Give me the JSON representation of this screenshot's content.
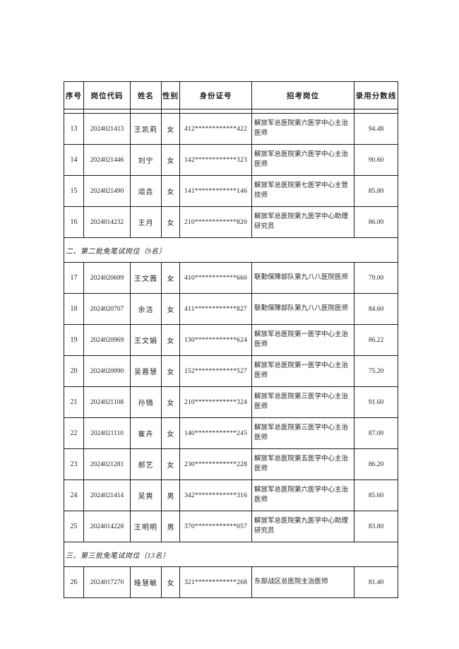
{
  "colors": {
    "page_background": "#ffffff",
    "border": "#1a1a1a",
    "text": "#1d1d1d"
  },
  "table": {
    "headers": [
      "序号",
      "岗位代码",
      "姓名",
      "性别",
      "身份证号",
      "招考岗位",
      "录用分数线"
    ],
    "rows": [
      {
        "type": "spacer"
      },
      {
        "type": "data",
        "seq": "13",
        "code": "2024021413",
        "name": "王凯莉",
        "gender": "女",
        "id_number": "412************422",
        "position": "解放军总医院第六医学中心主治医师",
        "score": "94.48"
      },
      {
        "type": "data",
        "seq": "14",
        "code": "2024021446",
        "name": "刘宁",
        "gender": "女",
        "id_number": "142************323",
        "position": "解放军总医院第六医学中心主治医师",
        "score": "90.60"
      },
      {
        "type": "data",
        "seq": "15",
        "code": "2024021490",
        "name": "俎垚",
        "gender": "女",
        "id_number": "141************146",
        "position": "解放军总医院第七医学中心主管技师",
        "score": "85.80"
      },
      {
        "type": "data",
        "seq": "16",
        "code": "2024014232",
        "name": "王月",
        "gender": "女",
        "id_number": "210************820",
        "position": "解放军总医院第九医学中心助理研究员",
        "score": "86.00"
      },
      {
        "type": "section",
        "title": "二、第二批免笔试岗位（9名）"
      },
      {
        "type": "data",
        "seq": "17",
        "code": "2024020699",
        "name": "王文茜",
        "gender": "女",
        "id_number": "410************660",
        "position": "联勤保障部队第九八八医院医师",
        "score": "79.00"
      },
      {
        "type": "data",
        "seq": "18",
        "code": "2024020707",
        "name": "余洁",
        "gender": "女",
        "id_number": "411************827",
        "position": "联勤保障部队第九八八医院医师",
        "score": "84.60"
      },
      {
        "type": "data",
        "seq": "19",
        "code": "2024020969",
        "name": "王文娟",
        "gender": "女",
        "id_number": "130************624",
        "position": "解放军总医院第一医学中心主治医师",
        "score": "86.22"
      },
      {
        "type": "data",
        "seq": "20",
        "code": "2024020990",
        "name": "吴蓉慧",
        "gender": "女",
        "id_number": "152************527",
        "position": "解放军总医院第一医学中心主治医师",
        "score": "75.20"
      },
      {
        "type": "data",
        "seq": "21",
        "code": "2024021108",
        "name": "孙镝",
        "gender": "女",
        "id_number": "210************324",
        "position": "解放军总医院第三医学中心主治医师",
        "score": "91.60"
      },
      {
        "type": "data",
        "seq": "22",
        "code": "2024021110",
        "name": "崔卉",
        "gender": "女",
        "id_number": "140************245",
        "position": "解放军总医院第三医学中心主治医师",
        "score": "87.00"
      },
      {
        "type": "data",
        "seq": "23",
        "code": "2024021281",
        "name": "郝艺",
        "gender": "女",
        "id_number": "230************228",
        "position": "解放军总医院第五医学中心主治医师",
        "score": "86.20"
      },
      {
        "type": "data",
        "seq": "24",
        "code": "2024021414",
        "name": "吴爽",
        "gender": "男",
        "id_number": "342************316",
        "position": "解放军总医院第六医学中心主治医师",
        "score": "85.60"
      },
      {
        "type": "data",
        "seq": "25",
        "code": "2024014228",
        "name": "王明明",
        "gender": "男",
        "id_number": "370************057",
        "position": "解放军总医院第九医学中心助理研究员",
        "score": "83.80"
      },
      {
        "type": "section",
        "title": "三、第三批免笔试岗位（13名）"
      },
      {
        "type": "data",
        "seq": "26",
        "code": "2024017270",
        "name": "眭慧敏",
        "gender": "女",
        "id_number": "321************268",
        "position": "东部战区总医院主治医师",
        "score": "81.40"
      }
    ]
  }
}
